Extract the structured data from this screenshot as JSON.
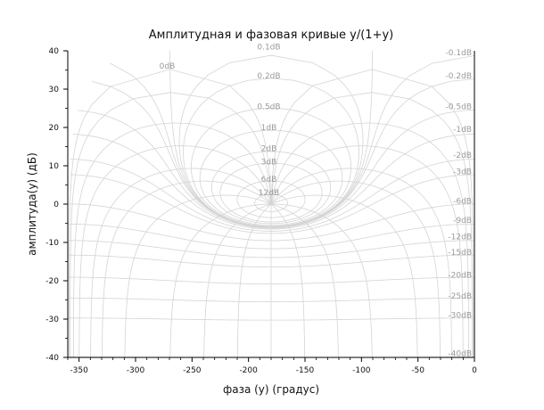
{
  "chart_data": {
    "type": "line",
    "title": "Амплитудная и фазовая кривые y/(1+y)",
    "xlabel": "фаза (y) (градус)",
    "ylabel": "амплитуда(y) (дБ)",
    "xlim": [
      -360,
      0
    ],
    "ylim": [
      -40,
      40
    ],
    "xticks": [
      -350,
      -300,
      -250,
      -200,
      -150,
      -100,
      -50,
      0
    ],
    "yticks": [
      -40,
      -30,
      -20,
      -10,
      0,
      10,
      20,
      30,
      40
    ],
    "grid": "nichols",
    "magnitude_curves_db": [
      0.1,
      0.2,
      0.5,
      1,
      2,
      3,
      6,
      12
    ],
    "magnitude_labels": [
      "0.1dB",
      "0.2dB",
      "0.5dB",
      "1dB",
      "2dB",
      "3dB",
      "6dB",
      "12dB"
    ],
    "zero_db_label": "0dB",
    "negative_magnitude_curves_db": [
      -0.1,
      -0.2,
      -0.5,
      -1,
      -2,
      -3,
      -6,
      -9,
      -12,
      -15,
      -20,
      -25,
      -30,
      -40
    ],
    "negative_magnitude_labels": [
      "-0.1dB",
      "-0.2dB",
      "-0.5dB",
      "-1dB",
      "-2dB",
      "-3dB",
      "-6dB",
      "-9dB",
      "-12dB",
      "-15dB",
      "-20dB",
      "-25dB",
      "-30dB",
      "-40dB"
    ],
    "phase_curves_deg": [
      -1,
      -2,
      -5,
      -10,
      -20,
      -30,
      -50,
      -90,
      -120,
      -150,
      -180,
      -210,
      -240,
      -270,
      -310,
      -330,
      -340,
      -350,
      -355,
      -358,
      -359
    ]
  }
}
